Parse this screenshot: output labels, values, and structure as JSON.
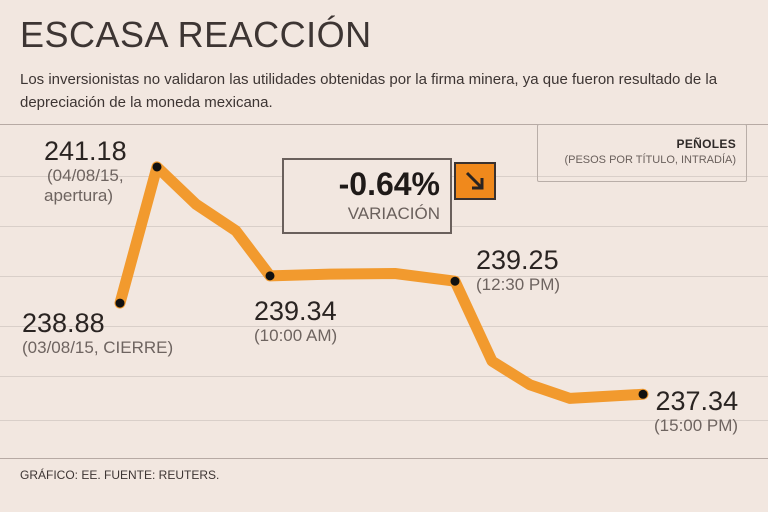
{
  "title": "ESCASA REACCIÓN",
  "subtitle": "Los inversionistas no validaron las utilidades obtenidas por la firma minera, ya que fueron resultado de la depreciación de la moneda mexicana.",
  "legend": {
    "name": "PEÑOLES",
    "unit": "(PESOS POR TÍTULO, INTRADÍA)"
  },
  "variation": {
    "value": "-0.64%",
    "label": "VARIACIÓN",
    "icon": "down-right-arrow-icon"
  },
  "footer": "GRÁFICO: EE. FUENTE: REUTERS.",
  "colors": {
    "line": "#f29a2e",
    "accent": "#f0891c",
    "dot": "#111111"
  },
  "points": [
    {
      "value": "238.88",
      "sub": [
        "(03/08/15, CIERRE)"
      ]
    },
    {
      "value": "241.18",
      "sub": [
        "(04/08/15,",
        "apertura)"
      ]
    },
    {
      "value": "239.34",
      "sub": [
        "(10:00 AM)"
      ]
    },
    {
      "value": "239.25",
      "sub": [
        "(12:30 PM)"
      ]
    },
    {
      "value": "237.34",
      "sub": [
        "(15:00 PM)"
      ]
    }
  ],
  "chart_data": {
    "type": "line",
    "title": "PEÑOLES",
    "ylabel": "(PESOS POR TÍTULO, INTRADÍA)",
    "ylim": [
      236.5,
      241.5
    ],
    "series": [
      {
        "name": "Peñoles",
        "x": [
          0,
          1,
          2,
          3,
          4,
          5,
          6,
          7,
          8,
          9,
          10,
          11
        ],
        "values": [
          238.88,
          241.18,
          240.55,
          240.1,
          239.34,
          239.37,
          239.38,
          239.25,
          237.9,
          237.5,
          237.27,
          237.34
        ],
        "labeled_points": [
          0,
          1,
          4,
          7,
          11
        ]
      }
    ]
  }
}
